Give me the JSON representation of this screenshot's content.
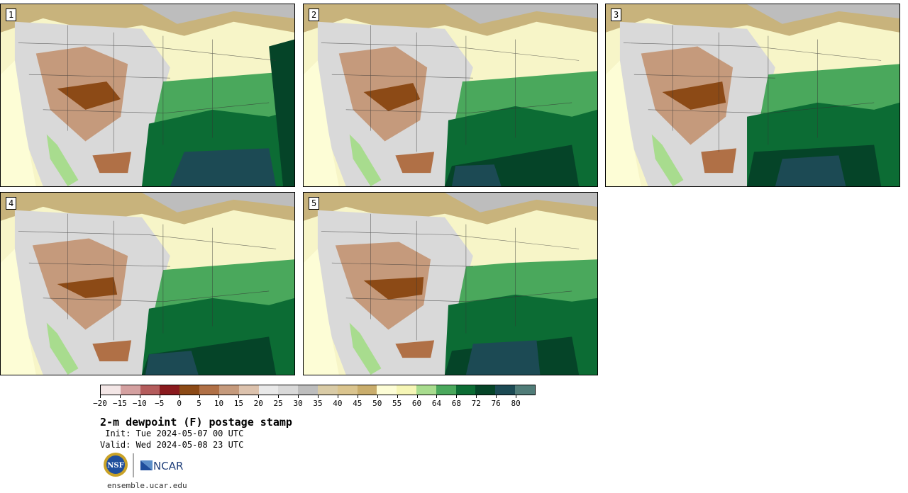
{
  "panels": [
    {
      "label": "1"
    },
    {
      "label": "2"
    },
    {
      "label": "3"
    },
    {
      "label": "4"
    },
    {
      "label": "5"
    }
  ],
  "colorbar": {
    "colors": [
      "#f3e6e6",
      "#d4a0a0",
      "#b45c5c",
      "#8a1a1e",
      "#8c4a16",
      "#b07046",
      "#c59a7c",
      "#dcc2ad",
      "#e9e9e9",
      "#d9d9d9",
      "#bdbdbd",
      "#d9cba6",
      "#dac48e",
      "#c9ad6c",
      "#fdfdd6",
      "#f6f6b6",
      "#a8dc8e",
      "#4aa85c",
      "#0c6c34",
      "#054428",
      "#1c4a54",
      "#507c78"
    ],
    "ticks": [
      "−20",
      "−15",
      "−10",
      "−5",
      "0",
      "5",
      "10",
      "15",
      "20",
      "25",
      "30",
      "35",
      "40",
      "45",
      "50",
      "55",
      "60",
      "64",
      "68",
      "72",
      "76",
      "80"
    ]
  },
  "title": "2-m dewpoint (F) postage stamp",
  "init": " Init: Tue 2024-05-07 00 UTC",
  "valid": "Valid: Wed 2024-05-08 23 UTC",
  "logos": {
    "nsf": "NSF",
    "ncar": "NCAR"
  },
  "website": "ensemble.ucar.edu"
}
